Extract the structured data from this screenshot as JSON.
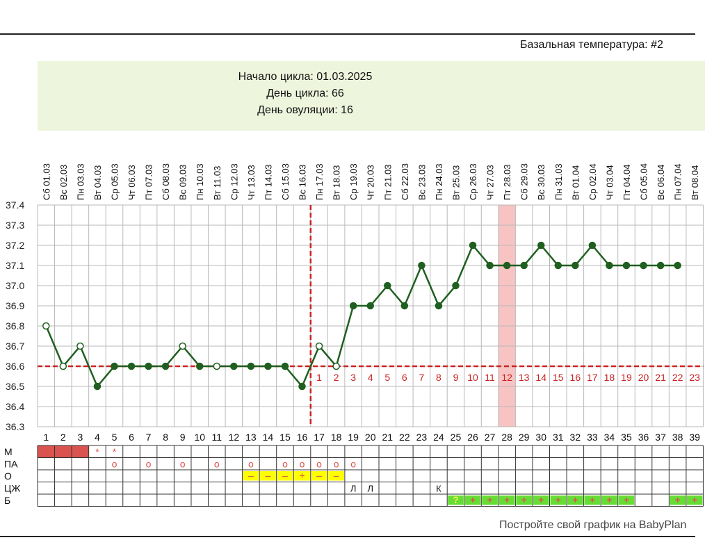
{
  "chart_title": "Базальная температура: #2",
  "info": {
    "cycle_start": "Начало цикла: 01.03.2025",
    "cycle_day": "День цикла: 66",
    "ovulation_day": "День овуляции: 16"
  },
  "footer": "Постройте свой график на BabyPlan",
  "colors": {
    "line": "#1f5f1f",
    "cover_line": "#cc2222",
    "grid": "#b9b9b9",
    "highlight": "#f7c3c3",
    "info_bg": "#eef5dd",
    "m_fill": "#d9534f",
    "o_fill": "#ffff00",
    "b_fill": "#66dd33",
    "mark_red": "#d9534f"
  },
  "chart_data": {
    "type": "line",
    "title": "Базальная температура: #2",
    "ylim": [
      36.3,
      37.4
    ],
    "y_ticks": [
      "36.3",
      "36.4",
      "36.5",
      "36.6",
      "36.7",
      "36.8",
      "36.9",
      "37.0",
      "37.1",
      "37.2",
      "37.3",
      "37.4"
    ],
    "dates": [
      "Сб 01.03",
      "Вс 02.03",
      "Пн 03.03",
      "Вт 04.03",
      "Ср 05.03",
      "Чт 06.03",
      "Пт 07.03",
      "Сб 08.03",
      "Вс 09.03",
      "Пн 10.03",
      "Вт 11.03",
      "Ср 12.03",
      "Чт 13.03",
      "Пт 14.03",
      "Сб 15.03",
      "Вс 16.03",
      "Пн 17.03",
      "Вт 18.03",
      "Ср 19.03",
      "Чт 20.03",
      "Пт 21.03",
      "Сб 22.03",
      "Вс 23.03",
      "Пн 24.03",
      "Вт 25.03",
      "Ср 26.03",
      "Чт 27.03",
      "Пт 28.03",
      "Сб 29.03",
      "Вс 30.03",
      "Пн 31.03",
      "Вт 01.04",
      "Ср 02.04",
      "Чт 03.04",
      "Пт 04.04",
      "Сб 05.04",
      "Вс 06.04",
      "Пн 07.04",
      "Вт 08.04"
    ],
    "days": [
      "1",
      "2",
      "3",
      "4",
      "5",
      "6",
      "7",
      "8",
      "9",
      "10",
      "11",
      "12",
      "13",
      "14",
      "15",
      "16",
      "17",
      "18",
      "19",
      "20",
      "21",
      "22",
      "23",
      "24",
      "25",
      "26",
      "27",
      "28",
      "29",
      "30",
      "31",
      "32",
      "33",
      "34",
      "35",
      "36",
      "37",
      "38",
      "39"
    ],
    "temperatures": [
      36.8,
      36.6,
      36.7,
      36.5,
      36.6,
      36.6,
      36.6,
      36.6,
      36.7,
      36.6,
      36.6,
      36.6,
      36.6,
      36.6,
      36.6,
      36.5,
      36.7,
      36.6,
      36.9,
      36.9,
      37.0,
      36.9,
      37.1,
      36.9,
      37.0,
      37.2,
      37.1,
      37.1,
      37.1,
      37.2,
      37.1,
      37.1,
      37.2,
      37.1,
      37.1,
      37.1,
      37.1,
      37.1
    ],
    "hollow_points": [
      1,
      2,
      3,
      9,
      11,
      17,
      18
    ],
    "cover_line": 36.6,
    "ovulation_day": 16,
    "highlight_day": 28,
    "luteal_labels": [
      "1",
      "2",
      "3",
      "4",
      "5",
      "6",
      "7",
      "8",
      "9",
      "10",
      "11",
      "12",
      "13",
      "14",
      "15",
      "16",
      "17",
      "18",
      "19",
      "20",
      "21",
      "22",
      "23"
    ],
    "rows": [
      {
        "label": "М",
        "cells": {
          "1": "fill",
          "2": "fill",
          "3": "fill",
          "4": "*",
          "5": "*"
        }
      },
      {
        "label": "ПА",
        "cells": {
          "5": "о",
          "7": "о",
          "9": "о",
          "11": "о",
          "13": "о",
          "15": "о",
          "16": "о",
          "17": "о",
          "18": "о",
          "19": "о"
        }
      },
      {
        "label": "О",
        "cells": {
          "13": "–",
          "14": "–",
          "15": "–",
          "16": "+",
          "17": "–",
          "18": "–"
        }
      },
      {
        "label": "ЦЖ",
        "cells": {
          "19": "Л",
          "20": "Л",
          "24": "К"
        }
      },
      {
        "label": "Б",
        "cells": {
          "25": "?",
          "26": "+",
          "27": "+",
          "28": "+",
          "29": "+",
          "30": "+",
          "31": "+",
          "32": "+",
          "33": "+",
          "34": "+",
          "35": "+",
          "38": "+",
          "39": "+"
        }
      }
    ]
  }
}
